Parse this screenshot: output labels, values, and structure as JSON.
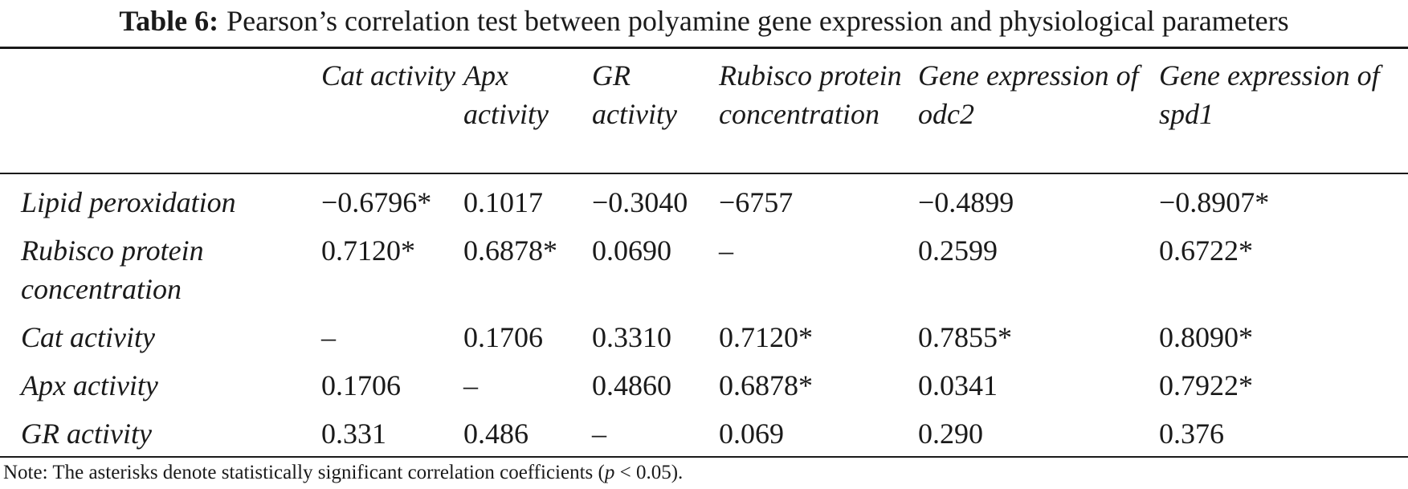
{
  "caption": {
    "label": "Table 6:",
    "text": "Pearson’s correlation test between polyamine gene expression and physiological parameters"
  },
  "columns": [
    "",
    "Cat activity",
    "Apx activity",
    "GR activity",
    "Rubisco protein concentration",
    "Gene expression of odc2",
    "Gene expression of spd1"
  ],
  "rows": [
    {
      "label": "Lipid peroxidation",
      "values": [
        "−0.6796*",
        "0.1017",
        "−0.3040",
        "−6757",
        "−0.4899",
        "−0.8907*"
      ]
    },
    {
      "label": "Rubisco protein concentration",
      "values": [
        "0.7120*",
        "0.6878*",
        "0.0690",
        "–",
        "0.2599",
        "0.6722*"
      ]
    },
    {
      "label": "Cat activity",
      "values": [
        "–",
        "0.1706",
        "0.3310",
        "0.7120*",
        "0.7855*",
        "0.8090*"
      ]
    },
    {
      "label": "Apx activity",
      "values": [
        "0.1706",
        "–",
        "0.4860",
        "0.6878*",
        "0.0341",
        "0.7922*"
      ]
    },
    {
      "label": "GR activity",
      "values": [
        "0.331",
        "0.486",
        "–",
        "0.069",
        "0.290",
        "0.376"
      ]
    }
  ],
  "note": {
    "prefix": "Note: The asterisks denote statistically significant correlation coefficients (",
    "variable": "p",
    "suffix": " < 0.05)."
  }
}
